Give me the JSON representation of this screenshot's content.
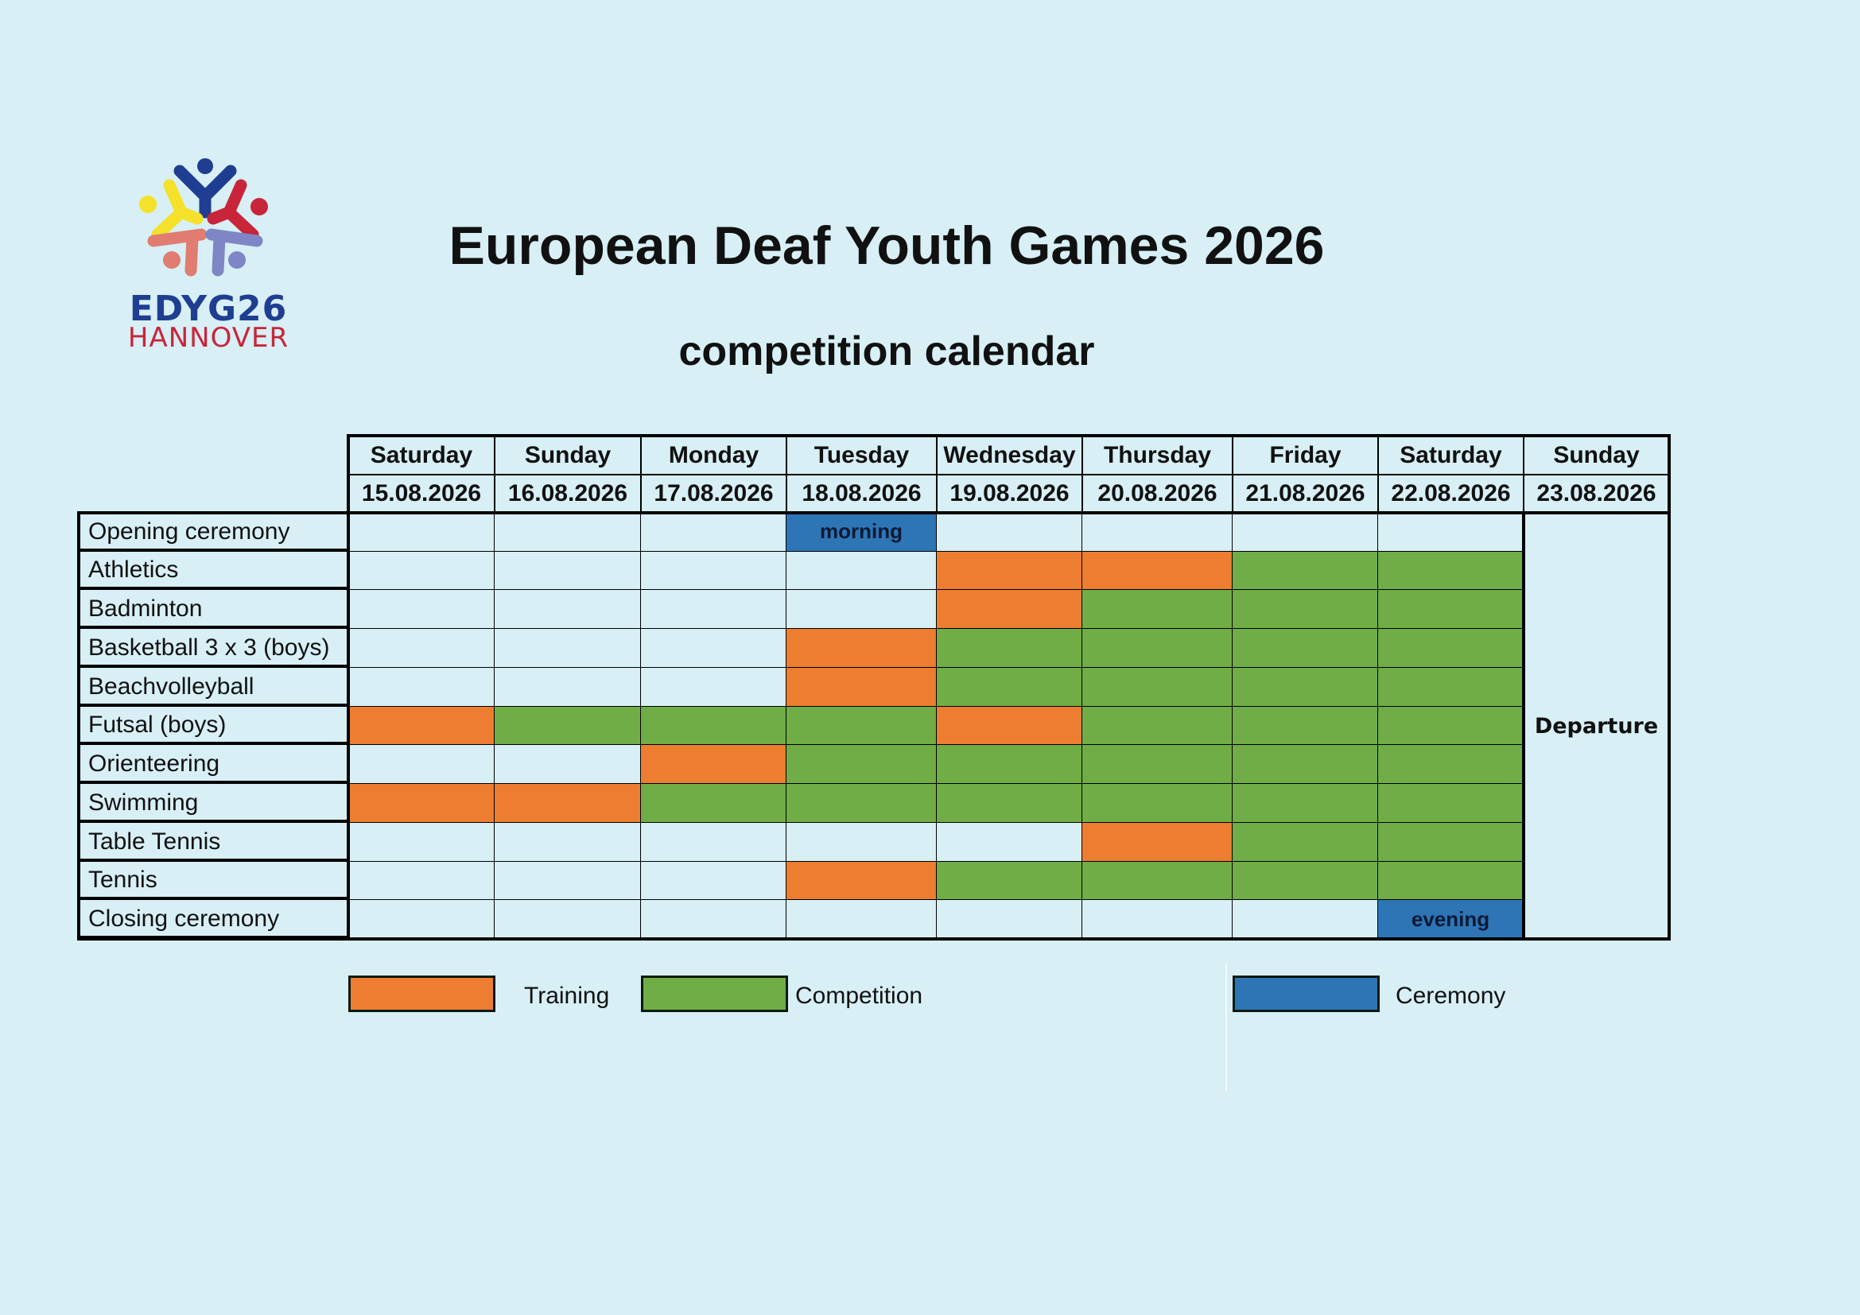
{
  "logo": {
    "line1": "EDYG26",
    "line2": "HANNOVER",
    "icon": "five-figures-logo-icon",
    "colors": [
      "#1f3e92",
      "#f5e12a",
      "#c8253a",
      "#e07c70",
      "#7f86c6"
    ]
  },
  "header": {
    "title": "European Deaf Youth Games 2026",
    "subtitle": "competition calendar"
  },
  "colors": {
    "background": "#d7eff5",
    "training": "#ed7d31",
    "competition": "#70ad47",
    "ceremony": "#2e75b6",
    "empty": "#d7eff5"
  },
  "days": [
    {
      "weekday": "Saturday",
      "date": "15.08.2026"
    },
    {
      "weekday": "Sunday",
      "date": "16.08.2026"
    },
    {
      "weekday": "Monday",
      "date": "17.08.2026"
    },
    {
      "weekday": "Tuesday",
      "date": "18.08.2026"
    },
    {
      "weekday": "Wednesday",
      "date": "19.08.2026"
    },
    {
      "weekday": "Thursday",
      "date": "20.08.2026"
    },
    {
      "weekday": "Friday",
      "date": "21.08.2026"
    },
    {
      "weekday": "Saturday",
      "date": "22.08.2026"
    },
    {
      "weekday": "Sunday",
      "date": "23.08.2026"
    }
  ],
  "rows": [
    {
      "label": "Opening ceremony",
      "cells": [
        "",
        "",
        "",
        "C",
        "",
        "",
        "",
        ""
      ],
      "notes": {
        "3": "morning"
      }
    },
    {
      "label": "Athletics",
      "cells": [
        "",
        "",
        "",
        "",
        "T",
        "T",
        "P",
        "P"
      ]
    },
    {
      "label": "Badminton",
      "cells": [
        "",
        "",
        "",
        "",
        "T",
        "P",
        "P",
        "P"
      ]
    },
    {
      "label": "Basketball 3 x 3 (boys)",
      "cells": [
        "",
        "",
        "",
        "T",
        "P",
        "P",
        "P",
        "P"
      ]
    },
    {
      "label": "Beachvolleyball",
      "cells": [
        "",
        "",
        "",
        "T",
        "P",
        "P",
        "P",
        "P"
      ]
    },
    {
      "label": "Futsal (boys)",
      "cells": [
        "T",
        "P",
        "P",
        "P",
        "T",
        "P",
        "P",
        "P"
      ]
    },
    {
      "label": "Orienteering",
      "cells": [
        "",
        "",
        "T",
        "P",
        "P",
        "P",
        "P",
        "P"
      ]
    },
    {
      "label": "Swimming",
      "cells": [
        "T",
        "T",
        "P",
        "P",
        "P",
        "P",
        "P",
        "P"
      ]
    },
    {
      "label": "Table Tennis",
      "cells": [
        "",
        "",
        "",
        "",
        "",
        "T",
        "P",
        "P"
      ]
    },
    {
      "label": "Tennis",
      "cells": [
        "",
        "",
        "",
        "T",
        "P",
        "P",
        "P",
        "P"
      ]
    },
    {
      "label": "Closing ceremony",
      "cells": [
        "",
        "",
        "",
        "",
        "",
        "",
        "",
        "C"
      ],
      "notes": {
        "7": "evening"
      }
    }
  ],
  "last_day_note": "Departure",
  "legend": [
    {
      "key": "T",
      "label": "Training",
      "color": "#ed7d31"
    },
    {
      "key": "P",
      "label": "Competition",
      "color": "#70ad47"
    },
    {
      "key": "C",
      "label": "Ceremony",
      "color": "#2e75b6"
    }
  ]
}
